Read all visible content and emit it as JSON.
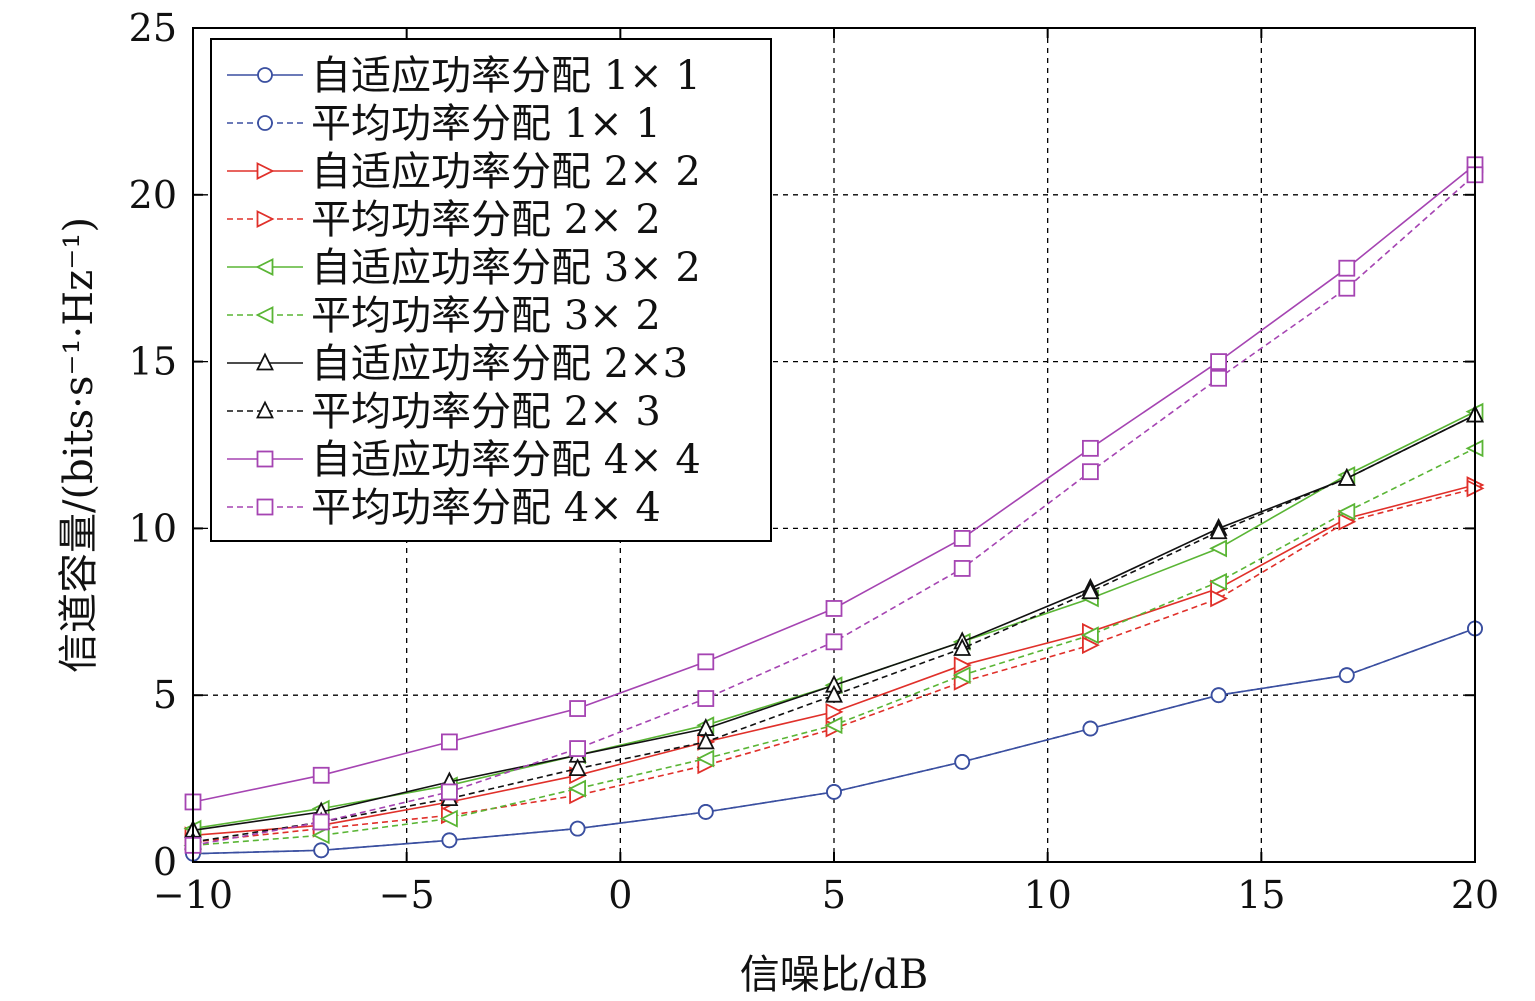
{
  "chart_data": {
    "type": "line",
    "title": "",
    "xlabel": "信噪比/dB",
    "ylabel": "信道容量/(bits·s⁻¹·Hz⁻¹)",
    "xlim": [
      -10,
      20
    ],
    "ylim": [
      0,
      25
    ],
    "xticks": [
      -10,
      -5,
      0,
      5,
      10,
      15,
      20
    ],
    "xtick_labels": [
      "−10",
      "−5",
      "0",
      "5",
      "10",
      "15",
      "20"
    ],
    "yticks": [
      0,
      5,
      10,
      15,
      20,
      25
    ],
    "ytick_labels": [
      "0",
      "5",
      "10",
      "15",
      "20",
      "25"
    ],
    "grid": true,
    "legend_position": "top-left",
    "x": [
      -10,
      -7,
      -4,
      -1,
      2,
      5,
      8,
      11,
      14,
      17,
      20
    ],
    "series": [
      {
        "name": "自适应功率分配 1× 1",
        "color": "#3a4fa0",
        "marker": "circle",
        "dash": false,
        "values": [
          0.25,
          0.35,
          0.65,
          1.0,
          1.5,
          2.1,
          3.0,
          4.0,
          5.0,
          5.6,
          7.0
        ]
      },
      {
        "name": "平均功率分配 1× 1",
        "color": "#3a4fa0",
        "marker": "circle",
        "dash": true,
        "values": [
          0.25,
          0.35,
          0.65,
          1.0,
          1.5,
          2.1,
          3.0,
          4.0,
          5.0,
          5.6,
          7.0
        ]
      },
      {
        "name": "自适应功率分配 2× 2",
        "color": "#e0302a",
        "marker": "triangle-right",
        "dash": false,
        "values": [
          0.8,
          1.1,
          1.8,
          2.6,
          3.6,
          4.5,
          5.9,
          6.9,
          8.2,
          10.3,
          11.3
        ]
      },
      {
        "name": "平均功率分配 2× 2",
        "color": "#e0302a",
        "marker": "triangle-right",
        "dash": true,
        "values": [
          0.6,
          1.0,
          1.4,
          2.0,
          2.9,
          4.0,
          5.4,
          6.5,
          7.9,
          10.2,
          11.2
        ]
      },
      {
        "name": "自适应功率分配 3× 2",
        "color": "#5ab535",
        "marker": "triangle-left",
        "dash": false,
        "values": [
          1.0,
          1.6,
          2.3,
          3.2,
          4.1,
          5.3,
          6.6,
          7.9,
          9.4,
          11.6,
          13.5
        ]
      },
      {
        "name": "平均功率分配 3× 2",
        "color": "#5ab535",
        "marker": "triangle-left",
        "dash": true,
        "values": [
          0.5,
          0.8,
          1.3,
          2.2,
          3.1,
          4.1,
          5.6,
          6.8,
          8.4,
          10.5,
          12.4
        ]
      },
      {
        "name": "自适应功率分配 2×3",
        "color": "#111111",
        "marker": "triangle-up",
        "dash": false,
        "values": [
          0.95,
          1.5,
          2.4,
          3.2,
          4.0,
          5.3,
          6.6,
          8.2,
          10.0,
          11.5,
          13.4
        ]
      },
      {
        "name": "平均功率分配 2× 3",
        "color": "#111111",
        "marker": "triangle-up",
        "dash": true,
        "values": [
          0.6,
          1.2,
          1.9,
          2.8,
          3.6,
          5.0,
          6.4,
          8.1,
          9.9,
          11.5,
          13.4
        ]
      },
      {
        "name": "自适应功率分配 4× 4",
        "color": "#a544b2",
        "marker": "square",
        "dash": false,
        "values": [
          1.8,
          2.6,
          3.6,
          4.6,
          6.0,
          7.6,
          9.7,
          12.4,
          15.0,
          17.8,
          20.9
        ]
      },
      {
        "name": "平均功率分配 4× 4",
        "color": "#a544b2",
        "marker": "square",
        "dash": true,
        "values": [
          0.5,
          1.2,
          2.1,
          3.4,
          4.9,
          6.6,
          8.8,
          11.7,
          14.5,
          17.2,
          20.6
        ]
      }
    ]
  }
}
